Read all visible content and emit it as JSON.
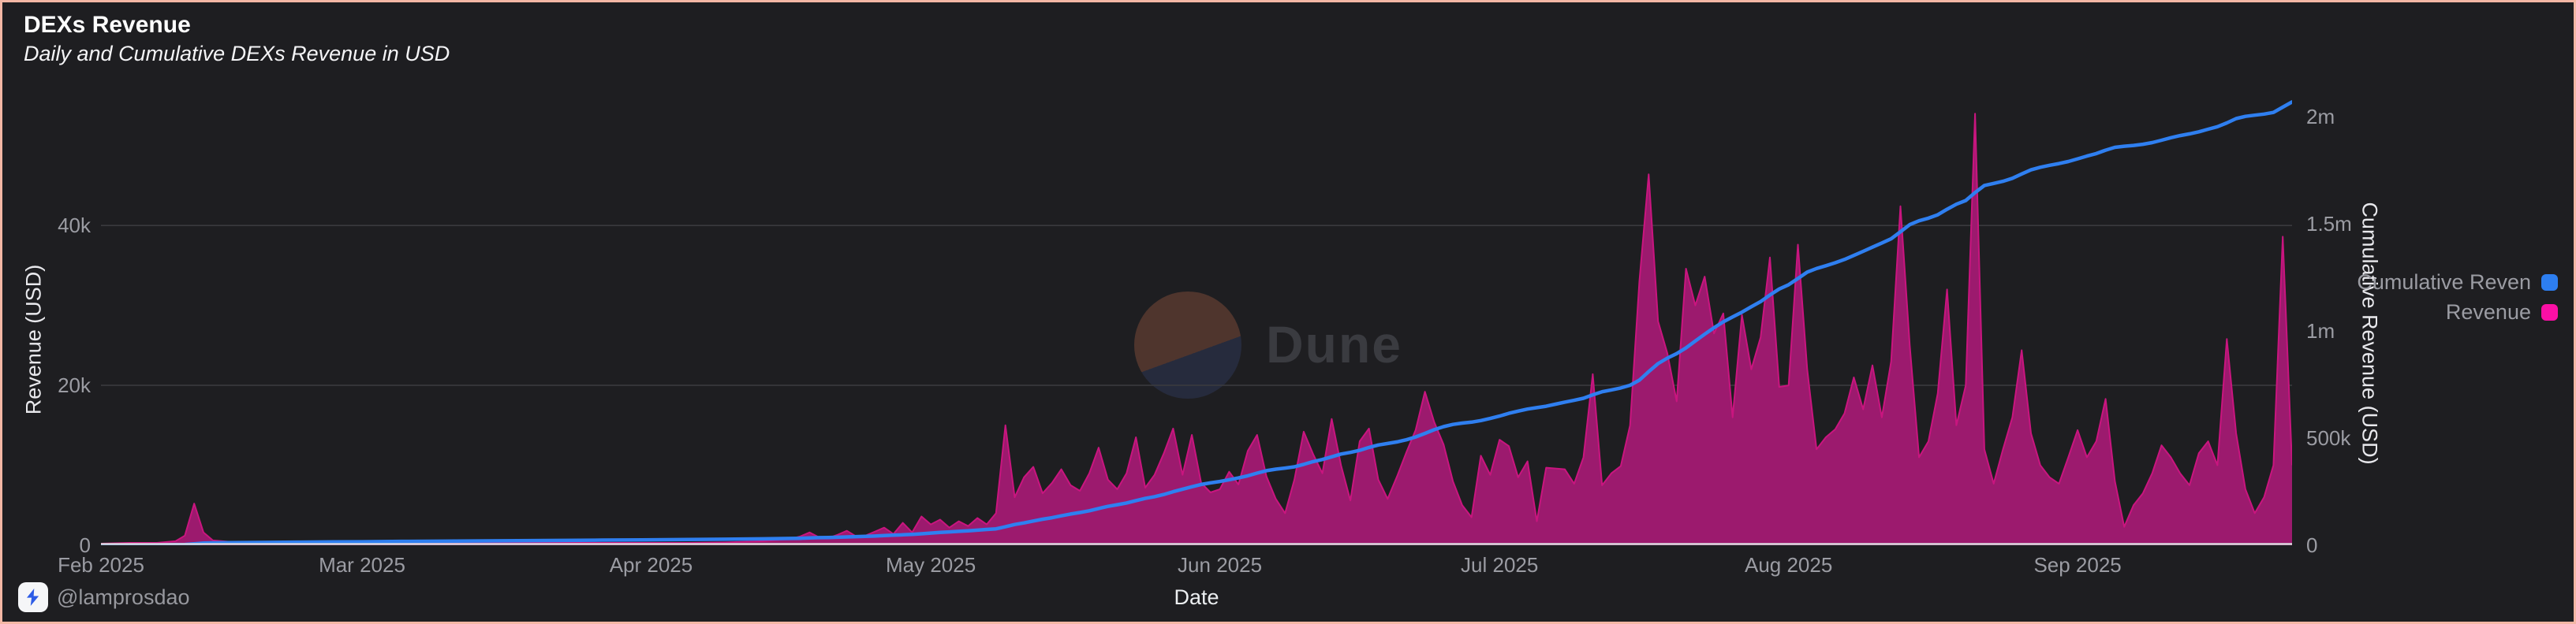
{
  "header": {
    "title": "DEXs Revenue",
    "subtitle": "Daily and Cumulative DEXs Revenue in USD"
  },
  "watermark": {
    "text": "Dune"
  },
  "attribution": {
    "handle": "@lamprosdao"
  },
  "legend": [
    {
      "label": "Cumulative Reven",
      "series": "Cumulative Revenue",
      "color": "#2d7ef0"
    },
    {
      "label": "Revenue",
      "series": "Revenue",
      "color": "#fb0fa5"
    }
  ],
  "colors": {
    "background": "#1e1e21",
    "frame_border": "#f3b7a5",
    "gridline": "#3a3a3e",
    "axis_line": "#dcdce0",
    "area_fill": "#9c1a6e",
    "area_stroke": "#c9157f",
    "cumulative_line": "#2f7ff0",
    "tick_text": "#9b9ca3"
  },
  "axes": {
    "x": {
      "title": "Date",
      "start_date": "2025-02-01",
      "max_day": 235,
      "ticks": [
        {
          "label": "Feb 2025",
          "day": 0
        },
        {
          "label": "Mar 2025",
          "day": 28
        },
        {
          "label": "Apr 2025",
          "day": 59
        },
        {
          "label": "May 2025",
          "day": 89
        },
        {
          "label": "Jun 2025",
          "day": 120
        },
        {
          "label": "Jul 2025",
          "day": 150
        },
        {
          "label": "Aug 2025",
          "day": 181
        },
        {
          "label": "Sep 2025",
          "day": 212
        }
      ]
    },
    "y_left": {
      "title": "Revenue (USD)",
      "max": 62000,
      "ticks": [
        {
          "label": "0",
          "value": 0
        },
        {
          "label": "20k",
          "value": 20000
        },
        {
          "label": "40k",
          "value": 40000
        }
      ]
    },
    "y_right": {
      "title": "Cumulative Revenue (USD)",
      "max": 2312500,
      "ticks": [
        {
          "label": "0",
          "value": 0
        },
        {
          "label": "500k",
          "value": 500000
        },
        {
          "label": "1m",
          "value": 1000000
        },
        {
          "label": "1.5m",
          "value": 1500000
        },
        {
          "label": "2m",
          "value": 2000000
        }
      ]
    }
  },
  "chart_data": {
    "type": "area",
    "title": "DEXs Revenue",
    "subtitle": "Daily and Cumulative DEXs Revenue in USD",
    "xlabel": "Date",
    "ylabel_left": "Revenue (USD)",
    "ylabel_right": "Cumulative Revenue (USD)",
    "grid": true,
    "legend_position": "right",
    "x_unit": "days_since_2025-02-01",
    "series": [
      {
        "name": "Revenue",
        "type": "area",
        "axis": "left",
        "points": [
          [
            0,
            200
          ],
          [
            3,
            300
          ],
          [
            6,
            300
          ],
          [
            8,
            500
          ],
          [
            9,
            1200
          ],
          [
            10,
            5200
          ],
          [
            11,
            1600
          ],
          [
            12,
            600
          ],
          [
            14,
            400
          ],
          [
            17,
            300
          ],
          [
            21,
            300
          ],
          [
            25,
            300
          ],
          [
            28,
            300
          ],
          [
            33,
            300
          ],
          [
            38,
            250
          ],
          [
            43,
            300
          ],
          [
            48,
            300
          ],
          [
            53,
            300
          ],
          [
            58,
            300
          ],
          [
            63,
            300
          ],
          [
            67,
            350
          ],
          [
            71,
            500
          ],
          [
            74,
            800
          ],
          [
            75,
            1100
          ],
          [
            76,
            1600
          ],
          [
            77,
            1000
          ],
          [
            78,
            900
          ],
          [
            79,
            1300
          ],
          [
            80,
            1800
          ],
          [
            81,
            1100
          ],
          [
            82,
            1200
          ],
          [
            83,
            1700
          ],
          [
            84,
            2200
          ],
          [
            85,
            1400
          ],
          [
            86,
            2800
          ],
          [
            87,
            1600
          ],
          [
            88,
            3600
          ],
          [
            89,
            2600
          ],
          [
            90,
            3200
          ],
          [
            91,
            2200
          ],
          [
            92,
            3000
          ],
          [
            93,
            2400
          ],
          [
            94,
            3400
          ],
          [
            95,
            2600
          ],
          [
            96,
            4000
          ],
          [
            97,
            15000
          ],
          [
            98,
            6000
          ],
          [
            99,
            8500
          ],
          [
            100,
            9800
          ],
          [
            101,
            6500
          ],
          [
            102,
            7800
          ],
          [
            103,
            9500
          ],
          [
            104,
            7500
          ],
          [
            105,
            6800
          ],
          [
            106,
            9000
          ],
          [
            107,
            12200
          ],
          [
            108,
            8200
          ],
          [
            109,
            7000
          ],
          [
            110,
            9000
          ],
          [
            111,
            13500
          ],
          [
            112,
            7200
          ],
          [
            113,
            8800
          ],
          [
            114,
            11500
          ],
          [
            115,
            14600
          ],
          [
            116,
            8800
          ],
          [
            117,
            13800
          ],
          [
            118,
            7800
          ],
          [
            119,
            6600
          ],
          [
            120,
            7000
          ],
          [
            121,
            9200
          ],
          [
            122,
            7600
          ],
          [
            123,
            11800
          ],
          [
            124,
            13800
          ],
          [
            125,
            8600
          ],
          [
            126,
            5800
          ],
          [
            127,
            4000
          ],
          [
            128,
            8200
          ],
          [
            129,
            14200
          ],
          [
            130,
            11400
          ],
          [
            131,
            9000
          ],
          [
            132,
            15800
          ],
          [
            133,
            10000
          ],
          [
            134,
            5600
          ],
          [
            135,
            13000
          ],
          [
            136,
            14600
          ],
          [
            137,
            8200
          ],
          [
            138,
            5800
          ],
          [
            139,
            8600
          ],
          [
            140,
            11600
          ],
          [
            141,
            14400
          ],
          [
            142,
            19200
          ],
          [
            143,
            15400
          ],
          [
            144,
            12600
          ],
          [
            145,
            8000
          ],
          [
            146,
            5000
          ],
          [
            147,
            3500
          ],
          [
            148,
            11200
          ],
          [
            149,
            8800
          ],
          [
            150,
            13200
          ],
          [
            151,
            12400
          ],
          [
            152,
            8500
          ],
          [
            153,
            10500
          ],
          [
            154,
            3000
          ],
          [
            155,
            9700
          ],
          [
            156,
            9600
          ],
          [
            157,
            9500
          ],
          [
            158,
            7700
          ],
          [
            159,
            11000
          ],
          [
            160,
            21400
          ],
          [
            161,
            7500
          ],
          [
            162,
            9000
          ],
          [
            163,
            9900
          ],
          [
            164,
            15000
          ],
          [
            165,
            33000
          ],
          [
            166,
            46400
          ],
          [
            167,
            28000
          ],
          [
            168,
            24000
          ],
          [
            169,
            18000
          ],
          [
            170,
            34600
          ],
          [
            171,
            30000
          ],
          [
            172,
            33600
          ],
          [
            173,
            26500
          ],
          [
            174,
            29000
          ],
          [
            175,
            16000
          ],
          [
            176,
            28800
          ],
          [
            177,
            22000
          ],
          [
            178,
            26000
          ],
          [
            179,
            36000
          ],
          [
            180,
            19800
          ],
          [
            181,
            20000
          ],
          [
            182,
            37600
          ],
          [
            183,
            22000
          ],
          [
            184,
            12000
          ],
          [
            185,
            13500
          ],
          [
            186,
            14500
          ],
          [
            187,
            16500
          ],
          [
            188,
            21000
          ],
          [
            189,
            17000
          ],
          [
            190,
            22500
          ],
          [
            191,
            16000
          ],
          [
            192,
            23000
          ],
          [
            193,
            42400
          ],
          [
            194,
            25000
          ],
          [
            195,
            11000
          ],
          [
            196,
            13000
          ],
          [
            197,
            19000
          ],
          [
            198,
            32000
          ],
          [
            199,
            15000
          ],
          [
            200,
            20000
          ],
          [
            201,
            54000
          ],
          [
            202,
            12000
          ],
          [
            203,
            7700
          ],
          [
            204,
            12000
          ],
          [
            205,
            16000
          ],
          [
            206,
            24400
          ],
          [
            207,
            14000
          ],
          [
            208,
            10000
          ],
          [
            209,
            8500
          ],
          [
            210,
            7700
          ],
          [
            211,
            11000
          ],
          [
            212,
            14400
          ],
          [
            213,
            11000
          ],
          [
            214,
            13000
          ],
          [
            215,
            18300
          ],
          [
            216,
            8000
          ],
          [
            217,
            2300
          ],
          [
            218,
            5000
          ],
          [
            219,
            6500
          ],
          [
            220,
            9000
          ],
          [
            221,
            12500
          ],
          [
            222,
            11000
          ],
          [
            223,
            9000
          ],
          [
            224,
            7500
          ],
          [
            225,
            11500
          ],
          [
            226,
            13000
          ],
          [
            227,
            10000
          ],
          [
            228,
            25800
          ],
          [
            229,
            14000
          ],
          [
            230,
            7000
          ],
          [
            231,
            4000
          ],
          [
            232,
            6000
          ],
          [
            233,
            10000
          ],
          [
            234,
            38600
          ],
          [
            235,
            10000
          ]
        ]
      },
      {
        "name": "Cumulative Revenue",
        "type": "line",
        "axis": "right",
        "derived": "running_sum_of_Revenue",
        "end_value_approx": 2000000
      }
    ]
  }
}
